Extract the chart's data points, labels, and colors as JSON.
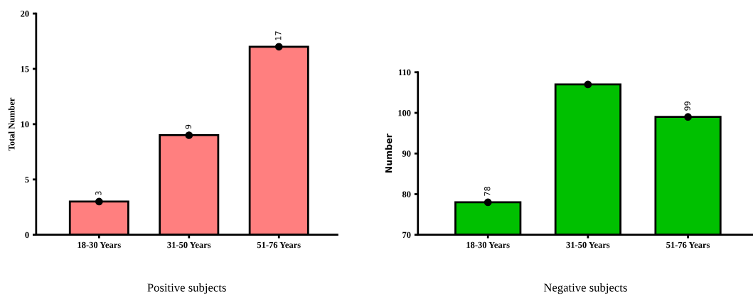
{
  "chart_data": [
    {
      "type": "bar",
      "xlabel": "Positive subjects",
      "ylabel": "Total Number",
      "categories": [
        "18-30 Years",
        "31-50 Years",
        "51-76 Years"
      ],
      "ylim": [
        0,
        20
      ],
      "yticks": [
        0,
        5,
        10,
        15,
        20
      ],
      "series": [
        {
          "color": "#ff7f7f",
          "values": [
            3,
            9,
            17
          ],
          "value_labels": [
            "3",
            "9",
            "17"
          ]
        },
        {
          "type": "scatter",
          "color": "#000000",
          "x": [
            "18-30 Years",
            "31-50 Years",
            "51-76 Years"
          ],
          "values": [
            3,
            9,
            17
          ],
          "marker": "circle"
        }
      ]
    },
    {
      "type": "bar",
      "xlabel": "Negative subjects",
      "ylabel": "Number",
      "categories": [
        "18-30 Years",
        "31-50 Years",
        "51-76 Years"
      ],
      "ylim": [
        70,
        110
      ],
      "yticks": [
        70,
        80,
        90,
        100,
        110
      ],
      "series": [
        {
          "color": "#00c000",
          "values": [
            78,
            107,
            99
          ],
          "value_labels": [
            "78",
            null,
            "99"
          ]
        },
        {
          "type": "scatter",
          "color": "#000000",
          "x": [
            "18-30 Years",
            "31-50 Years",
            "51-76 Years"
          ],
          "values": [
            78,
            107,
            99
          ],
          "marker": "circle"
        }
      ]
    }
  ]
}
